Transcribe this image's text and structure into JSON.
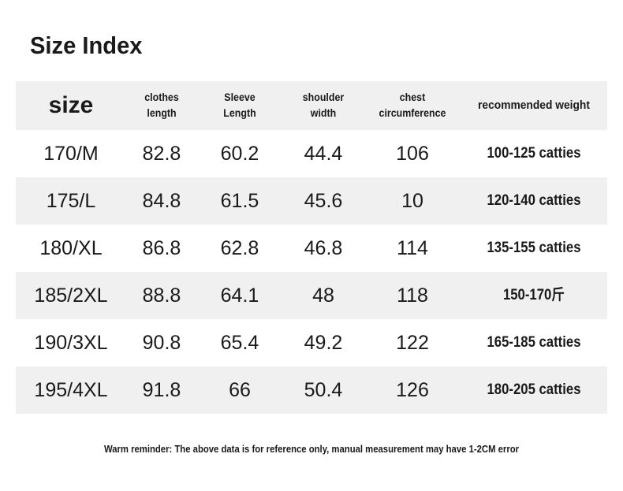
{
  "header": {
    "title": "Size Index"
  },
  "colors": {
    "row_stripe": "#f0f0f0",
    "text": "#1a1a1a",
    "background": "#ffffff"
  },
  "chart_data": {
    "type": "table",
    "title": "Size Index",
    "columns": [
      "size",
      "clothes length",
      "Sleeve Length",
      "shoulder width",
      "chest circumference",
      "recommended weight"
    ],
    "rows": [
      [
        "170/M",
        "82.8",
        "60.2",
        "44.4",
        "106",
        "100-125 catties"
      ],
      [
        "175/L",
        "84.8",
        "61.5",
        "45.6",
        "10",
        "120-140 catties"
      ],
      [
        "180/XL",
        "86.8",
        "62.8",
        "46.8",
        "114",
        "135-155 catties"
      ],
      [
        "185/2XL",
        "88.8",
        "64.1",
        "48",
        "118",
        "150-170斤"
      ],
      [
        "190/3XL",
        "90.8",
        "65.4",
        "49.2",
        "122",
        "165-185 catties"
      ],
      [
        "195/4XL",
        "91.8",
        "66",
        "50.4",
        "126",
        "180-205 catties"
      ]
    ]
  },
  "footer": {
    "note": "Warm reminder: The above data is for reference only, manual measurement may have 1-2CM error"
  }
}
